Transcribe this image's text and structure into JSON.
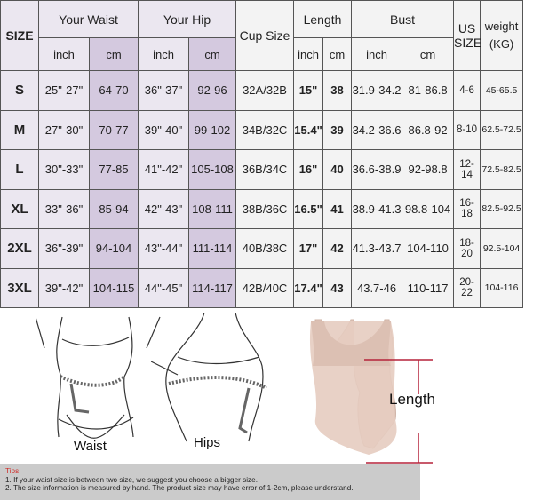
{
  "table": {
    "headers": {
      "size": "SIZE",
      "waist": "Your Waist",
      "hip": "Your Hip",
      "cup": "Cup Size",
      "length": "Length",
      "bust": "Bust",
      "us_size_1": "US",
      "us_size_2": "SIZE",
      "weight_1": "weight",
      "weight_2": "(KG)",
      "inch": "inch",
      "cm": "cm"
    },
    "rows": [
      [
        "S",
        "25\"-27\"",
        "64-70",
        "36\"-37\"",
        "92-96",
        "32A/32B",
        "15\"",
        "38",
        "31.9-34.2",
        "81-86.8",
        "4-6",
        "45-65.5"
      ],
      [
        "M",
        "27\"-30\"",
        "70-77",
        "39\"-40\"",
        "99-102",
        "34B/32C",
        "15.4\"",
        "39",
        "34.2-36.6",
        "86.8-92",
        "8-10",
        "62.5-72.5"
      ],
      [
        "L",
        "30\"-33\"",
        "77-85",
        "41\"-42\"",
        "105-108",
        "36B/34C",
        "16\"",
        "40",
        "36.6-38.9",
        "92-98.8",
        "12-14",
        "72.5-82.5"
      ],
      [
        "XL",
        "33\"-36\"",
        "85-94",
        "42\"-43\"",
        "108-111",
        "38B/36C",
        "16.5\"",
        "41",
        "38.9-41.3",
        "98.8-104",
        "16-18",
        "82.5-92.5"
      ],
      [
        "2XL",
        "36\"-39\"",
        "94-104",
        "43\"-44\"",
        "111-114",
        "40B/38C",
        "17\"",
        "42",
        "41.3-43.7",
        "104-110",
        "18-20",
        "92.5-104"
      ],
      [
        "3XL",
        "39\"-42\"",
        "104-115",
        "44\"-45\"",
        "114-117",
        "42B/40C",
        "17.4\"",
        "43",
        "43.7-46",
        "110-117",
        "20-22",
        "104-116"
      ]
    ]
  },
  "illustrations": {
    "waist_label": "Waist",
    "hips_label": "Hips",
    "length_label": "Length",
    "product_color": "#e3c9bd",
    "line_color": "#b5223a"
  },
  "tips": {
    "title": "Tips",
    "lines": [
      "1. If your waist size is between two size, we suggest you choose a bigger size.",
      "2. The size information is measured by hand. The product size may have error of 1-2cm, please understand."
    ]
  }
}
